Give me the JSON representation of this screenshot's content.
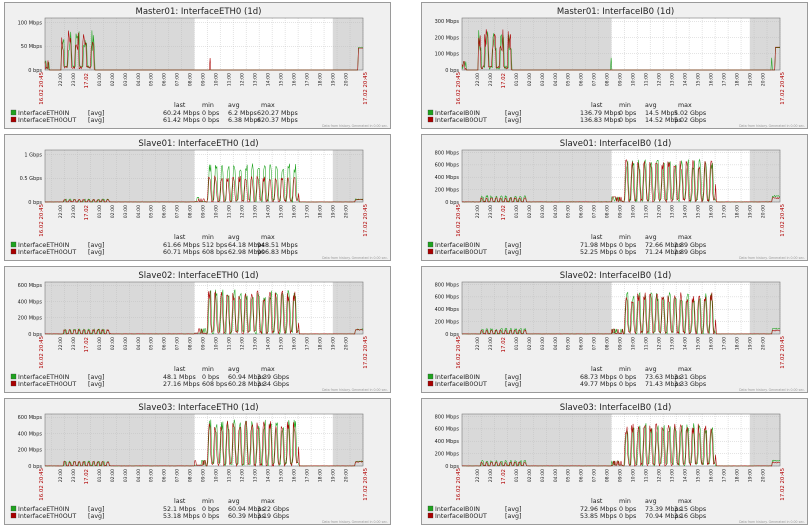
{
  "colors": {
    "in": "#1fa31f",
    "out": "#aa0000",
    "band": "#d9d9d9",
    "bg": "#f0f0f0",
    "plot": "#ffffff"
  },
  "legend_headers": [
    "last",
    "min",
    "avg",
    "max"
  ],
  "generated_note": "Data from history. Generated in 0.00 sec.",
  "x_ticks": [
    "22:00",
    "23:00",
    "17.02",
    "01:00",
    "02:00",
    "03:00",
    "04:00",
    "05:00",
    "06:00",
    "07:00",
    "08:00",
    "09:00",
    "10:00",
    "11:00",
    "12:00",
    "13:00",
    "14:00",
    "15:00",
    "16:00",
    "17:00",
    "18:00",
    "19:00",
    "20:00"
  ],
  "x_start_label": "16.02 20:45",
  "x_end_label": "17.02 20:45",
  "chart_data": [
    {
      "type": "line",
      "title": "Master01: InterfaceETH0 (1d)",
      "y_ticks": [
        "0 bps",
        "50 Mbps",
        "100 Mbps"
      ],
      "ylim": [
        0,
        120
      ],
      "unit": "Mbps",
      "series": [
        {
          "name": "InterfaceETH0IN",
          "agg": "[avg]",
          "last": "60.24 Mbps",
          "min": "0 bps",
          "avg": "6.2 Mbps",
          "max": "620.27 Mbps",
          "shape": "early",
          "peak": 95,
          "base": 3
        },
        {
          "name": "InterfaceETH0OUT",
          "agg": "[avg]",
          "last": "61.42 Mbps",
          "min": "0 bps",
          "avg": "6.38 Mbps",
          "max": "620.37 Mbps",
          "shape": "early",
          "peak": 92,
          "base": 2
        }
      ]
    },
    {
      "type": "line",
      "title": "Master01: InterfaceIB0 (1d)",
      "y_ticks": [
        "0 bps",
        "100 Mbps",
        "200 Mbps",
        "300 Mbps"
      ],
      "ylim": [
        0,
        320
      ],
      "unit": "Mbps",
      "series": [
        {
          "name": "InterfaceIB0IN",
          "agg": "[avg]",
          "last": "136.79 Mbps",
          "min": "0 bps",
          "avg": "14.5 Mbps",
          "max": "5.02 Gbps",
          "shape": "early",
          "peak": 250,
          "base": 5
        },
        {
          "name": "InterfaceIB0OUT",
          "agg": "[avg]",
          "last": "136.83 Mbps",
          "min": "0 bps",
          "avg": "14.52 Mbps",
          "max": "5.02 Gbps",
          "shape": "early",
          "peak": 255,
          "base": 5
        }
      ]
    },
    {
      "type": "line",
      "title": "Slave01: InterfaceETH0 (1d)",
      "y_ticks": [
        "0 bps",
        "0.5 Gbps",
        "1 Gbps"
      ],
      "ylim": [
        0,
        1.2
      ],
      "unit": "Gbps",
      "series": [
        {
          "name": "InterfaceETH0IN",
          "agg": "[avg]",
          "last": "61.66 Mbps",
          "min": "512 bps",
          "avg": "64.18 Mbps",
          "max": "948.51 Mbps",
          "shape": "slave",
          "peak": 0.9,
          "base": 0.06
        },
        {
          "name": "InterfaceETH0OUT",
          "agg": "[avg]",
          "last": "60.71 Mbps",
          "min": "608 bps",
          "avg": "62.98 Mbps",
          "max": "906.83 Mbps",
          "shape": "slave",
          "peak": 0.6,
          "base": 0.05
        }
      ]
    },
    {
      "type": "line",
      "title": "Slave01: InterfaceIB0 (1d)",
      "y_ticks": [
        "0 bps",
        "200 Mbps",
        "400 Mbps",
        "600 Mbps",
        "800 Mbps"
      ],
      "ylim": [
        0,
        850
      ],
      "unit": "Mbps",
      "series": [
        {
          "name": "InterfaceIB0IN",
          "agg": "[avg]",
          "last": "71.98 Mbps",
          "min": "0 bps",
          "avg": "72.66 Mbps",
          "max": "2.89 Gbps",
          "shape": "slave",
          "peak": 700,
          "base": 90
        },
        {
          "name": "InterfaceIB0OUT",
          "agg": "[avg]",
          "last": "52.25 Mbps",
          "min": "0 bps",
          "avg": "71.24 Mbps",
          "max": "2.89 Gbps",
          "shape": "slave",
          "peak": 690,
          "base": 60
        }
      ]
    },
    {
      "type": "line",
      "title": "Slave02: InterfaceETH0 (1d)",
      "y_ticks": [
        "0 bps",
        "200 Mbps",
        "400 Mbps",
        "600 Mbps"
      ],
      "ylim": [
        0,
        650
      ],
      "unit": "Mbps",
      "series": [
        {
          "name": "InterfaceETH0IN",
          "agg": "[avg]",
          "last": "48.1 Mbps",
          "min": "0 bps",
          "avg": "60.94 Mbps",
          "max": "3.39 Gbps",
          "shape": "slave",
          "peak": 560,
          "base": 55
        },
        {
          "name": "InterfaceETH0OUT",
          "agg": "[avg]",
          "last": "27.16 Mbps",
          "min": "608 bps",
          "avg": "60.28 Mbps",
          "max": "3.34 Gbps",
          "shape": "slave",
          "peak": 540,
          "base": 50
        }
      ]
    },
    {
      "type": "line",
      "title": "Slave02: InterfaceIB0 (1d)",
      "y_ticks": [
        "0 bps",
        "200 Mbps",
        "400 Mbps",
        "600 Mbps",
        "800 Mbps"
      ],
      "ylim": [
        0,
        850
      ],
      "unit": "Mbps",
      "series": [
        {
          "name": "InterfaceIB0IN",
          "agg": "[avg]",
          "last": "68.73 Mbps",
          "min": "0 bps",
          "avg": "73.63 Mbps",
          "max": "3.31 Gbps",
          "shape": "slave",
          "peak": 690,
          "base": 80
        },
        {
          "name": "InterfaceIB0OUT",
          "agg": "[avg]",
          "last": "49.77 Mbps",
          "min": "0 bps",
          "avg": "71.43 Mbps",
          "max": "3.33 Gbps",
          "shape": "slave",
          "peak": 680,
          "base": 55
        }
      ]
    },
    {
      "type": "line",
      "title": "Slave03: InterfaceETH0 (1d)",
      "y_ticks": [
        "0 bps",
        "200 Mbps",
        "400 Mbps",
        "600 Mbps"
      ],
      "ylim": [
        0,
        650
      ],
      "unit": "Mbps",
      "series": [
        {
          "name": "InterfaceETH0IN",
          "agg": "[avg]",
          "last": "52.1 Mbps",
          "min": "0 bps",
          "avg": "60.94 Mbps",
          "max": "3.22 Gbps",
          "shape": "slave",
          "peak": 580,
          "base": 55
        },
        {
          "name": "InterfaceETH0OUT",
          "agg": "[avg]",
          "last": "53.18 Mbps",
          "min": "0 bps",
          "avg": "60.39 Mbps",
          "max": "3.19 Gbps",
          "shape": "slave",
          "peak": 560,
          "base": 50
        }
      ]
    },
    {
      "type": "line",
      "title": "Slave03: InterfaceIB0 (1d)",
      "y_ticks": [
        "0 bps",
        "200 Mbps",
        "400 Mbps",
        "600 Mbps",
        "800 Mbps"
      ],
      "ylim": [
        0,
        850
      ],
      "unit": "Mbps",
      "series": [
        {
          "name": "InterfaceIB0IN",
          "agg": "[avg]",
          "last": "72.96 Mbps",
          "min": "0 bps",
          "avg": "73.39 Mbps",
          "max": "3.15 Gbps",
          "shape": "slave",
          "peak": 700,
          "base": 80
        },
        {
          "name": "InterfaceIB0OUT",
          "agg": "[avg]",
          "last": "53.85 Mbps",
          "min": "0 bps",
          "avg": "70.94 Mbps",
          "max": "3.16 Gbps",
          "shape": "slave",
          "peak": 690,
          "base": 55
        }
      ]
    }
  ]
}
